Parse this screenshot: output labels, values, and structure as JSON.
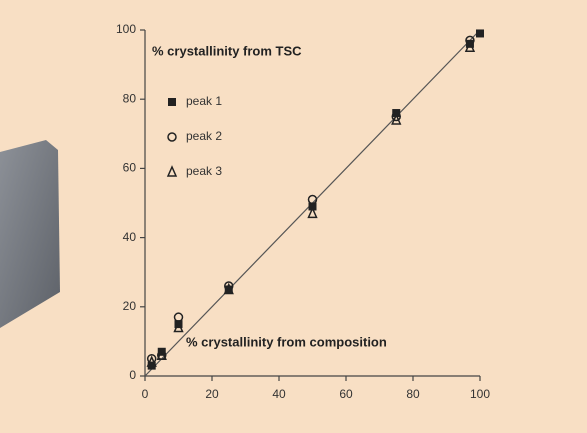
{
  "chart_data": {
    "type": "scatter",
    "x_label": "% crystallinity from composition",
    "y_label": "% crystallinity from TSC",
    "xlim": [
      0,
      100
    ],
    "ylim": [
      0,
      100
    ],
    "xticks": [
      0,
      20,
      40,
      60,
      80,
      100
    ],
    "yticks": [
      0,
      20,
      40,
      60,
      80,
      100
    ],
    "legend": "upper left",
    "series": [
      {
        "name": "peak 1",
        "color": "#222222",
        "marker": "square-filled",
        "x": [
          2,
          5,
          10,
          25,
          50,
          75,
          97,
          100
        ],
        "values": [
          3,
          7,
          15,
          25,
          49,
          76,
          96,
          99
        ]
      },
      {
        "name": "peak 2",
        "color": "#222222",
        "marker": "circle-open",
        "x": [
          2,
          5,
          10,
          25,
          50,
          75,
          97
        ],
        "values": [
          5,
          6,
          17,
          26,
          51,
          75,
          97
        ]
      },
      {
        "name": "peak 3",
        "color": "#222222",
        "marker": "triangle-open",
        "x": [
          2,
          5,
          10,
          25,
          50,
          75,
          97
        ],
        "values": [
          4,
          6,
          14,
          25,
          47,
          74,
          95
        ]
      }
    ]
  }
}
